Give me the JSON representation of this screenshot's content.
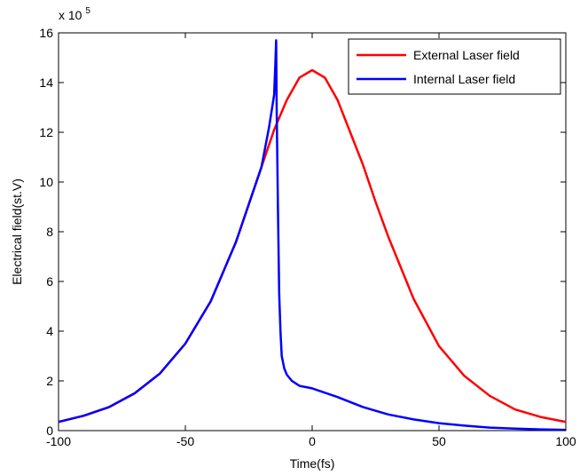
{
  "chart_data": {
    "type": "line",
    "xlabel": "Time(fs)",
    "ylabel": "Electrical field(st.V)",
    "y_multiplier_base": "x 10",
    "y_multiplier_exponent": "5",
    "xlim": [
      -100,
      100
    ],
    "ylim": [
      0,
      16
    ],
    "x_ticks": [
      -100,
      -50,
      0,
      50,
      100
    ],
    "y_ticks": [
      0,
      2,
      4,
      6,
      8,
      10,
      12,
      14,
      16
    ],
    "grid": false,
    "legend_position": "top-right",
    "series": [
      {
        "name": "External Laser field",
        "color": "#ff0000",
        "x": [
          -100,
          -90,
          -80,
          -70,
          -60,
          -50,
          -40,
          -30,
          -25,
          -20,
          -15,
          -10,
          -5,
          0,
          5,
          10,
          15,
          20,
          25,
          30,
          40,
          50,
          60,
          70,
          80,
          90,
          100
        ],
        "y": [
          0.35,
          0.6,
          0.95,
          1.5,
          2.3,
          3.5,
          5.2,
          7.6,
          9.1,
          10.6,
          12.1,
          13.3,
          14.2,
          14.5,
          14.2,
          13.3,
          12.0,
          10.7,
          9.2,
          7.8,
          5.3,
          3.4,
          2.2,
          1.4,
          0.85,
          0.55,
          0.35
        ]
      },
      {
        "name": "Internal Laser field",
        "color": "#0000ff",
        "x": [
          -100,
          -90,
          -80,
          -70,
          -60,
          -50,
          -40,
          -30,
          -25,
          -20,
          -17,
          -15,
          -14.5,
          -14.2,
          -14,
          -13.5,
          -13,
          -12.5,
          -12,
          -11,
          -10,
          -8,
          -5,
          0,
          10,
          20,
          30,
          40,
          50,
          60,
          70,
          80,
          90,
          100
        ],
        "y": [
          0.35,
          0.6,
          0.95,
          1.5,
          2.3,
          3.5,
          5.2,
          7.6,
          9.1,
          10.6,
          12.2,
          13.5,
          14.8,
          15.7,
          13.0,
          9.0,
          5.5,
          4.0,
          3.0,
          2.5,
          2.25,
          2.0,
          1.8,
          1.7,
          1.35,
          0.95,
          0.65,
          0.45,
          0.3,
          0.2,
          0.12,
          0.08,
          0.05,
          0.03
        ]
      }
    ]
  }
}
